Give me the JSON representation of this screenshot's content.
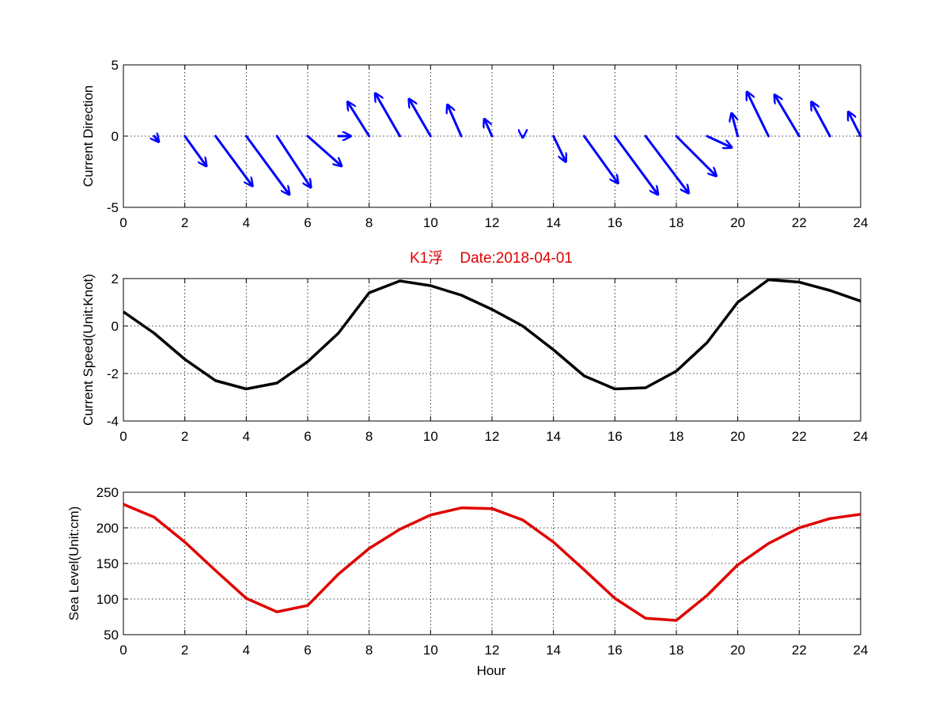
{
  "title": "K1浮    Date:2018-04-01",
  "colors": {
    "arrows": "#0000ff",
    "speed": "#000000",
    "sea_level": "#e00000",
    "title": "#e00000"
  },
  "chart_data": [
    {
      "type": "quiver",
      "ylabel": "Current Direction",
      "xlim": [
        0,
        24
      ],
      "ylim": [
        -5,
        5
      ],
      "xticks": [
        0,
        2,
        4,
        6,
        8,
        10,
        12,
        14,
        16,
        18,
        20,
        22,
        24
      ],
      "yticks": [
        -5,
        0,
        5
      ],
      "grid": true,
      "arrows": [
        {
          "x": 1,
          "u": 0.15,
          "v": -0.4
        },
        {
          "x": 2,
          "u": 0.7,
          "v": -2.1
        },
        {
          "x": 3,
          "u": 1.2,
          "v": -3.5
        },
        {
          "x": 4,
          "u": 1.4,
          "v": -4.1
        },
        {
          "x": 5,
          "u": 1.1,
          "v": -3.6
        },
        {
          "x": 6,
          "u": 1.1,
          "v": -2.1
        },
        {
          "x": 7,
          "u": 0.4,
          "v": 0.0
        },
        {
          "x": 8,
          "u": -0.7,
          "v": 2.4
        },
        {
          "x": 9,
          "u": -0.8,
          "v": 3.0
        },
        {
          "x": 10,
          "u": -0.7,
          "v": 2.6
        },
        {
          "x": 11,
          "u": -0.45,
          "v": 2.2
        },
        {
          "x": 12,
          "u": -0.25,
          "v": 1.2
        },
        {
          "x": 13,
          "u": 0.0,
          "v": -0.1
        },
        {
          "x": 14,
          "u": 0.4,
          "v": -1.8
        },
        {
          "x": 15,
          "u": 1.1,
          "v": -3.3
        },
        {
          "x": 16,
          "u": 1.4,
          "v": -4.1
        },
        {
          "x": 17,
          "u": 1.4,
          "v": -4.0
        },
        {
          "x": 18,
          "u": 1.3,
          "v": -2.8
        },
        {
          "x": 19,
          "u": 0.8,
          "v": -0.8
        },
        {
          "x": 20,
          "u": -0.2,
          "v": 1.6
        },
        {
          "x": 21,
          "u": -0.7,
          "v": 3.1
        },
        {
          "x": 22,
          "u": -0.8,
          "v": 2.9
        },
        {
          "x": 23,
          "u": -0.6,
          "v": 2.4
        },
        {
          "x": 24,
          "u": -0.4,
          "v": 1.7
        }
      ]
    },
    {
      "type": "line",
      "ylabel": "Current Speed(Unit:Knot)",
      "xlim": [
        0,
        24
      ],
      "ylim": [
        -4,
        2
      ],
      "xticks": [
        0,
        2,
        4,
        6,
        8,
        10,
        12,
        14,
        16,
        18,
        20,
        22,
        24
      ],
      "yticks": [
        -4,
        -2,
        0,
        2
      ],
      "grid": true,
      "x": [
        0,
        1,
        2,
        3,
        4,
        5,
        6,
        7,
        8,
        9,
        10,
        11,
        12,
        13,
        14,
        15,
        16,
        17,
        18,
        19,
        20,
        21,
        22,
        23,
        24
      ],
      "y": [
        0.6,
        -0.3,
        -1.4,
        -2.3,
        -2.65,
        -2.4,
        -1.5,
        -0.3,
        1.4,
        1.9,
        1.7,
        1.3,
        0.7,
        0.0,
        -1.0,
        -2.1,
        -2.65,
        -2.6,
        -1.9,
        -0.7,
        1.0,
        1.95,
        1.85,
        1.5,
        1.05
      ]
    },
    {
      "type": "line",
      "ylabel": "Sea Level(Unit:cm)",
      "xlabel": "Hour",
      "xlim": [
        0,
        24
      ],
      "ylim": [
        50,
        250
      ],
      "xticks": [
        0,
        2,
        4,
        6,
        8,
        10,
        12,
        14,
        16,
        18,
        20,
        22,
        24
      ],
      "yticks": [
        50,
        100,
        150,
        200,
        250
      ],
      "grid": true,
      "x": [
        0,
        1,
        2,
        3,
        4,
        5,
        6,
        7,
        8,
        9,
        10,
        11,
        12,
        13,
        14,
        15,
        16,
        17,
        18,
        19,
        20,
        21,
        22,
        23,
        24
      ],
      "y": [
        233,
        215,
        180,
        140,
        101,
        82,
        91,
        135,
        171,
        198,
        218,
        228,
        227,
        211,
        180,
        141,
        101,
        73,
        70,
        105,
        148,
        178,
        200,
        213,
        219
      ]
    }
  ]
}
